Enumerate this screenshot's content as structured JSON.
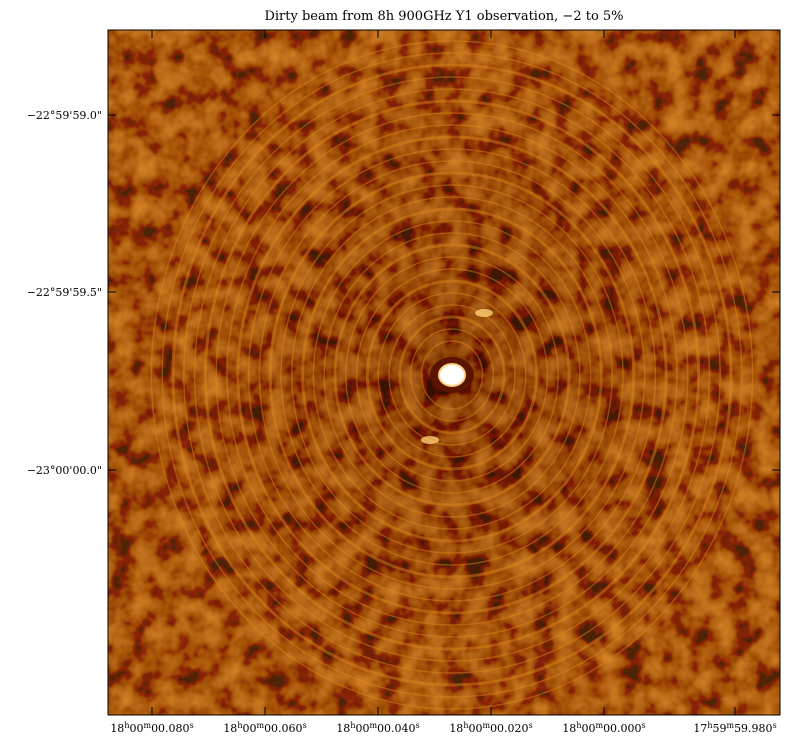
{
  "title": "Dirty beam from 8h 900GHz Y1 observation, −2 to 5%",
  "y_axis": {
    "ticks": [
      "−22°59'59.0\"",
      "−22°59'59.5\"",
      "−23°00'00.0\""
    ]
  },
  "x_axis": {
    "ticks": [
      [
        "18",
        "h",
        "00",
        "m",
        "00.080",
        "s"
      ],
      [
        "18",
        "h",
        "00",
        "m",
        "00.060",
        "s"
      ],
      [
        "18",
        "h",
        "00",
        "m",
        "00.040",
        "s"
      ],
      [
        "18",
        "h",
        "00",
        "m",
        "00.020",
        "s"
      ],
      [
        "18",
        "h",
        "00",
        "m",
        "00.000",
        "s"
      ],
      [
        "17",
        "h",
        "59",
        "m",
        "59.980",
        "s"
      ]
    ]
  }
}
